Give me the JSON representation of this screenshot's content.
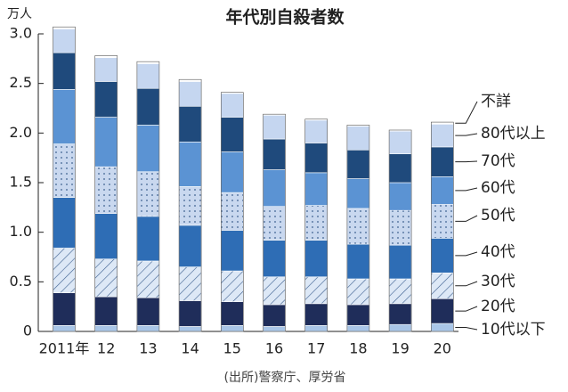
{
  "chart_data": {
    "type": "stacked-bar",
    "title": "年代別自殺者数",
    "y_unit": "万人",
    "source": "(出所)警察庁、厚労省",
    "categories": [
      "2011年",
      "12",
      "13",
      "14",
      "15",
      "16",
      "17",
      "18",
      "19",
      "20"
    ],
    "series": [
      {
        "name": "10代以下",
        "color": "#a9c6e8",
        "values": [
          0.06,
          0.06,
          0.06,
          0.05,
          0.06,
          0.05,
          0.06,
          0.06,
          0.07,
          0.08
        ]
      },
      {
        "name": "20代",
        "color": "#1f2d5a",
        "values": [
          0.33,
          0.29,
          0.28,
          0.26,
          0.24,
          0.22,
          0.22,
          0.21,
          0.21,
          0.25
        ]
      },
      {
        "name": "30代",
        "color": "#dde8f6",
        "pattern": "hatch",
        "values": [
          0.45,
          0.38,
          0.37,
          0.34,
          0.31,
          0.28,
          0.27,
          0.26,
          0.25,
          0.26
        ]
      },
      {
        "name": "40代",
        "color": "#2e6db5",
        "values": [
          0.51,
          0.46,
          0.45,
          0.42,
          0.41,
          0.37,
          0.37,
          0.35,
          0.34,
          0.35
        ]
      },
      {
        "name": "50代",
        "color": "#c9d8ef",
        "pattern": "dots",
        "values": [
          0.54,
          0.47,
          0.45,
          0.39,
          0.38,
          0.34,
          0.35,
          0.36,
          0.35,
          0.34
        ]
      },
      {
        "name": "60代",
        "color": "#5b93d3",
        "values": [
          0.55,
          0.5,
          0.47,
          0.45,
          0.41,
          0.37,
          0.33,
          0.3,
          0.28,
          0.28
        ]
      },
      {
        "name": "70代",
        "color": "#1f4a7c",
        "values": [
          0.37,
          0.36,
          0.37,
          0.36,
          0.35,
          0.31,
          0.3,
          0.29,
          0.29,
          0.3
        ]
      },
      {
        "name": "80代以上",
        "color": "#c5d6f0",
        "values": [
          0.24,
          0.24,
          0.25,
          0.25,
          0.24,
          0.24,
          0.23,
          0.24,
          0.23,
          0.23
        ]
      },
      {
        "name": "不詳",
        "color": "#ffffff",
        "values": [
          0.02,
          0.02,
          0.02,
          0.02,
          0.01,
          0.01,
          0.01,
          0.01,
          0.01,
          0.02
        ]
      }
    ],
    "ylim": [
      0,
      3
    ],
    "yticks": [
      0,
      0.5,
      {
        "value": 1,
        "label": "1.0"
      },
      1.5,
      {
        "value": 2,
        "label": "2.0"
      },
      2.5,
      {
        "value": 3,
        "label": "3.0"
      }
    ]
  }
}
